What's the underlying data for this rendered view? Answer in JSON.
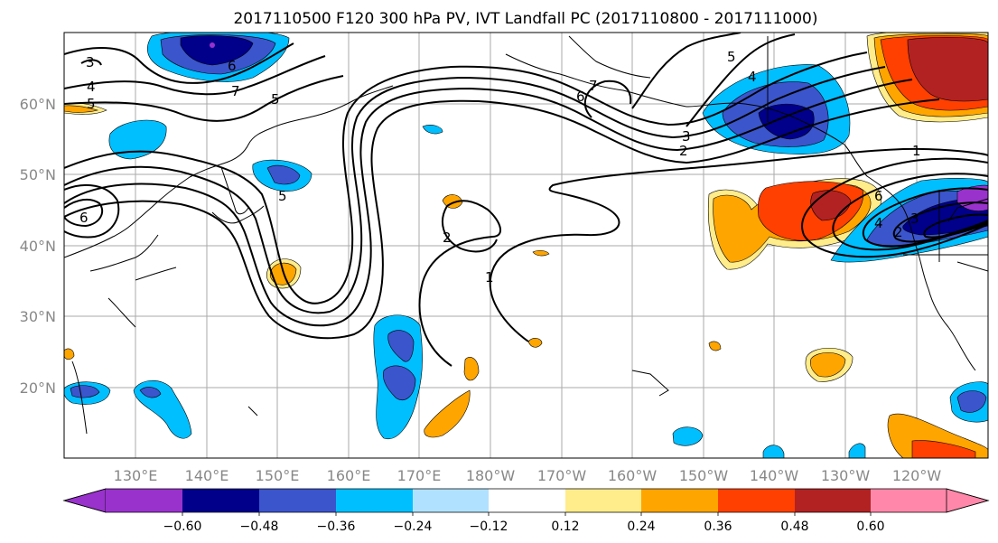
{
  "title": "2017110500 F120 300 hPa PV, IVT Landfall PC (2017110800 - 2017111000)",
  "lon_labels": [
    "130°E",
    "140°E",
    "150°E",
    "160°E",
    "170°E",
    "180°W",
    "170°W",
    "160°W",
    "150°W",
    "140°W",
    "130°W",
    "120°W"
  ],
  "lat_labels": [
    "60°N",
    "50°N",
    "40°N",
    "30°N",
    "20°N"
  ],
  "colorbar": {
    "colors": [
      "#9932cc",
      "#00008b",
      "#3b55cc",
      "#00bfff",
      "#b0e2ff",
      "#ffffff",
      "#ffec8b",
      "#ffa500",
      "#ff4000",
      "#b22222",
      "#ff88aa"
    ],
    "labels": [
      "−0.60",
      "−0.48",
      "−0.36",
      "−0.24",
      "−0.12",
      "0.12",
      "0.24",
      "0.36",
      "0.48",
      "0.60"
    ]
  },
  "contour_labels": [
    {
      "text": "3"
    },
    {
      "text": "4"
    },
    {
      "text": "5"
    },
    {
      "text": "6"
    },
    {
      "text": "7"
    },
    {
      "text": "5"
    },
    {
      "text": "6"
    },
    {
      "text": "5"
    },
    {
      "text": "2"
    },
    {
      "text": "1"
    },
    {
      "text": "5"
    },
    {
      "text": "4"
    },
    {
      "text": "6"
    },
    {
      "text": "7"
    },
    {
      "text": "3"
    },
    {
      "text": "2"
    },
    {
      "text": "1"
    },
    {
      "text": "6"
    },
    {
      "text": "4"
    },
    {
      "text": "3"
    },
    {
      "text": "2"
    }
  ]
}
